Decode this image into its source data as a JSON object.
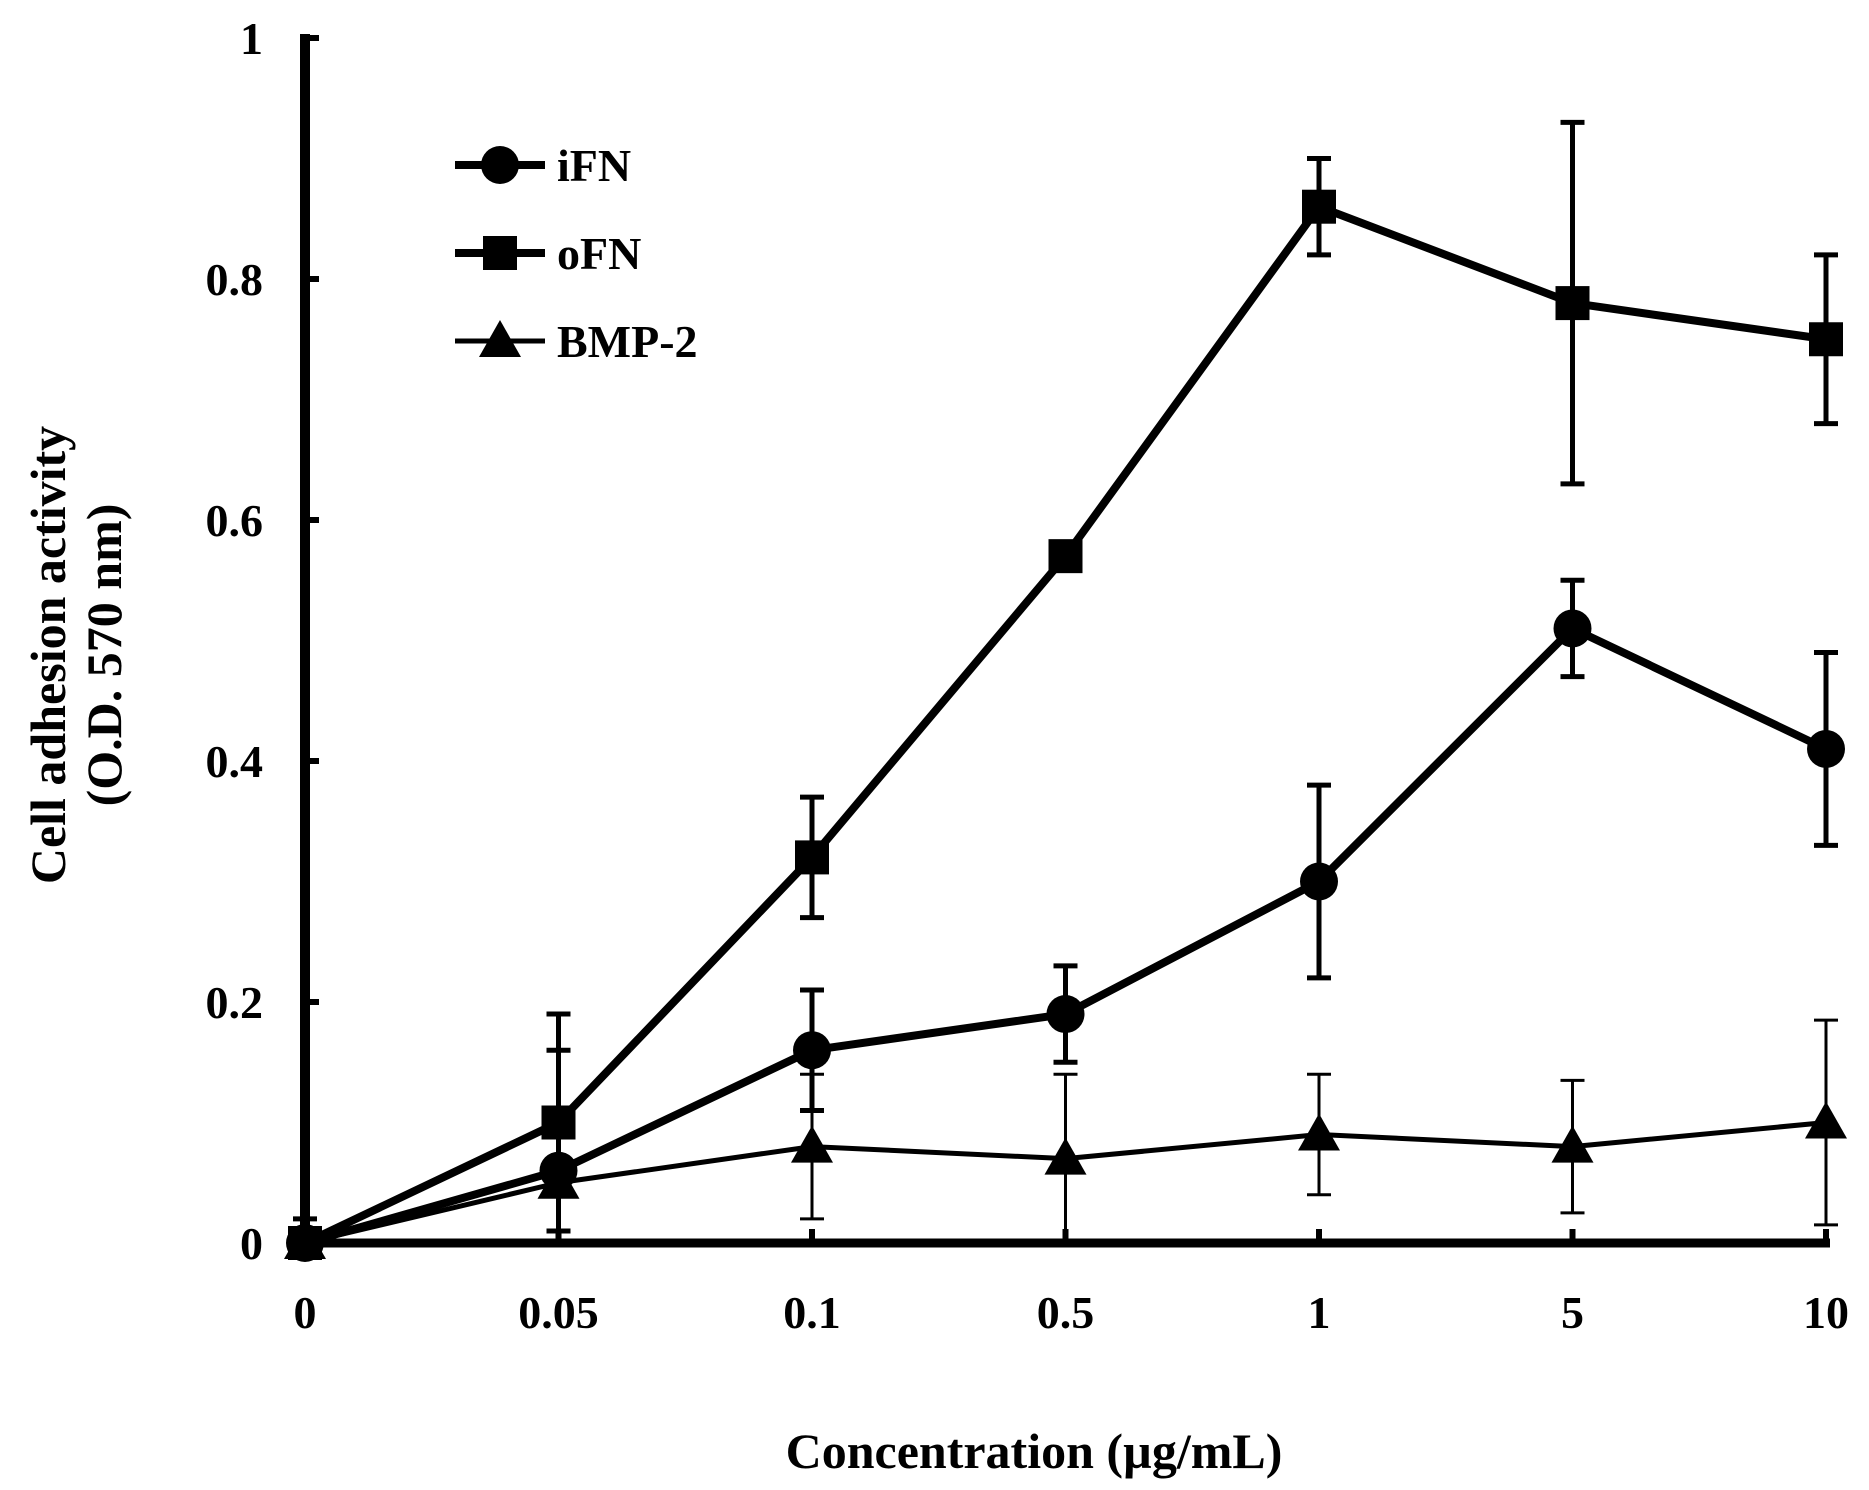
{
  "chart_data": {
    "type": "line",
    "title": "",
    "xlabel": "Concentration (µg/mL)",
    "ylabel": [
      "Cell adhesion activity",
      "(O.D. 570 nm)"
    ],
    "categories": [
      "0",
      "0.05",
      "0.1",
      "0.5",
      "1",
      "5",
      "10"
    ],
    "ylim": [
      0,
      1
    ],
    "yticks": [
      0,
      0.2,
      0.4,
      0.6,
      0.8,
      1
    ],
    "ytick_labels": [
      "0",
      "0.2",
      "0.4",
      "0.6",
      "0.8",
      "1"
    ],
    "grid": false,
    "legend_position": "top-left",
    "series": [
      {
        "name": "iFN",
        "marker": "circle",
        "values": [
          0,
          0.06,
          0.16,
          0.19,
          0.3,
          0.51,
          0.41
        ],
        "errors": [
          0.01,
          0.1,
          0.05,
          0.04,
          0.08,
          0.04,
          0.08
        ]
      },
      {
        "name": "oFN",
        "marker": "square",
        "values": [
          0,
          0.1,
          0.32,
          0.57,
          0.86,
          0.78,
          0.75
        ],
        "errors": [
          0.02,
          0.09,
          0.05,
          0.01,
          0.04,
          0.15,
          0.07
        ]
      },
      {
        "name": "BMP-2",
        "marker": "triangle",
        "values": [
          0,
          0.05,
          0.08,
          0.07,
          0.09,
          0.08,
          0.1
        ],
        "errors": [
          0.005,
          0.06,
          0.06,
          0.07,
          0.05,
          0.055,
          0.085
        ]
      }
    ],
    "colors": {
      "line": "#000000",
      "background": "#ffffff"
    }
  }
}
